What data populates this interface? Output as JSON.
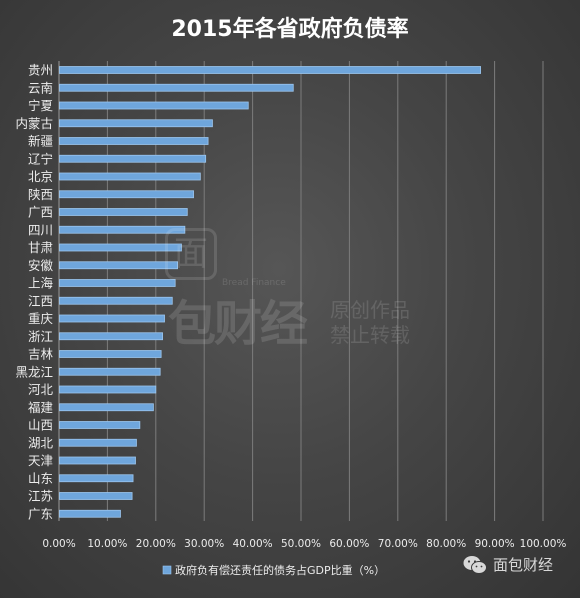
{
  "chart_data": {
    "type": "bar",
    "orientation": "horizontal",
    "title": "2015年各省政府负债率",
    "categories": [
      "贵州",
      "云南",
      "宁夏",
      "内蒙古",
      "新疆",
      "辽宁",
      "北京",
      "陕西",
      "广西",
      "四川",
      "甘肃",
      "安徽",
      "上海",
      "江西",
      "重庆",
      "浙江",
      "吉林",
      "黑龙江",
      "河北",
      "福建",
      "山西",
      "湖北",
      "天津",
      "山东",
      "江苏",
      "广东"
    ],
    "series": [
      {
        "name": "政府负有偿还责任的债务占GDP比重（%）",
        "values": [
          87.0,
          48.3,
          39.0,
          31.6,
          30.7,
          30.2,
          29.1,
          27.7,
          26.4,
          25.9,
          25.2,
          24.4,
          23.9,
          23.3,
          21.7,
          21.3,
          21.0,
          20.8,
          19.9,
          19.4,
          16.6,
          15.9,
          15.7,
          15.2,
          15.0,
          12.6
        ]
      }
    ],
    "xlim": [
      0,
      100
    ],
    "xticks": [
      "0.00%",
      "10.00%",
      "20.00%",
      "30.00%",
      "40.00%",
      "50.00%",
      "60.00%",
      "70.00%",
      "80.00%",
      "90.00%",
      "100.00%"
    ],
    "grid": true,
    "legend_position": "bottom",
    "colors": {
      "bar": "#6fa6dc",
      "bar_edge": "#9cc6ee",
      "grid": "#7c7c7c",
      "text": "#ececec"
    }
  },
  "watermark": {
    "logo_char": "面",
    "latin": "Bread Finance",
    "brand": "包财经",
    "line1": "原创作品",
    "line2": "禁止转载"
  },
  "brand_label": "面包财经",
  "brand_icon": "wechat-icon"
}
